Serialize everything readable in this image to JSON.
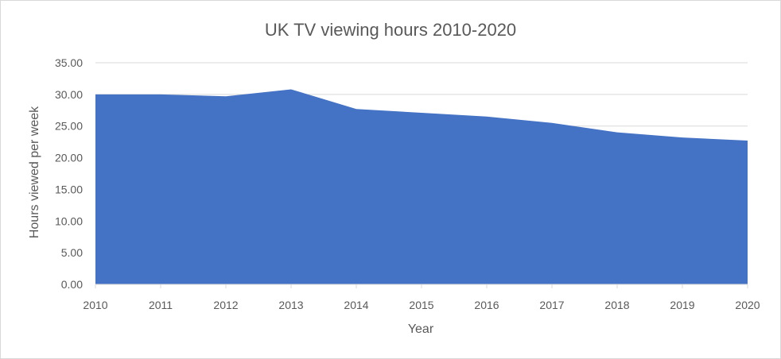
{
  "chart_data": {
    "type": "area",
    "title": "UK TV viewing hours 2010-2020",
    "xlabel": "Year",
    "ylabel": "Hours viewed per week",
    "categories": [
      "2010",
      "2011",
      "2012",
      "2013",
      "2014",
      "2015",
      "2016",
      "2017",
      "2018",
      "2019",
      "2020"
    ],
    "series": [
      {
        "values": [
          30.0,
          30.0,
          29.7,
          30.8,
          27.7,
          27.1,
          26.5,
          25.5,
          24.0,
          23.2,
          22.7
        ]
      }
    ],
    "ylim": [
      0,
      35
    ],
    "ytick_values": [
      0,
      5,
      10,
      15,
      20,
      25,
      30,
      35
    ],
    "ytick_labels": [
      "0.00",
      "5.00",
      "10.00",
      "15.00",
      "20.00",
      "25.00",
      "30.00",
      "35.00"
    ],
    "grid": true,
    "legend": "none",
    "colors": {
      "series_fill": "#4472c4",
      "gridline": "#d9d9d9",
      "text": "#595959",
      "border": "#d9d9d9"
    }
  }
}
